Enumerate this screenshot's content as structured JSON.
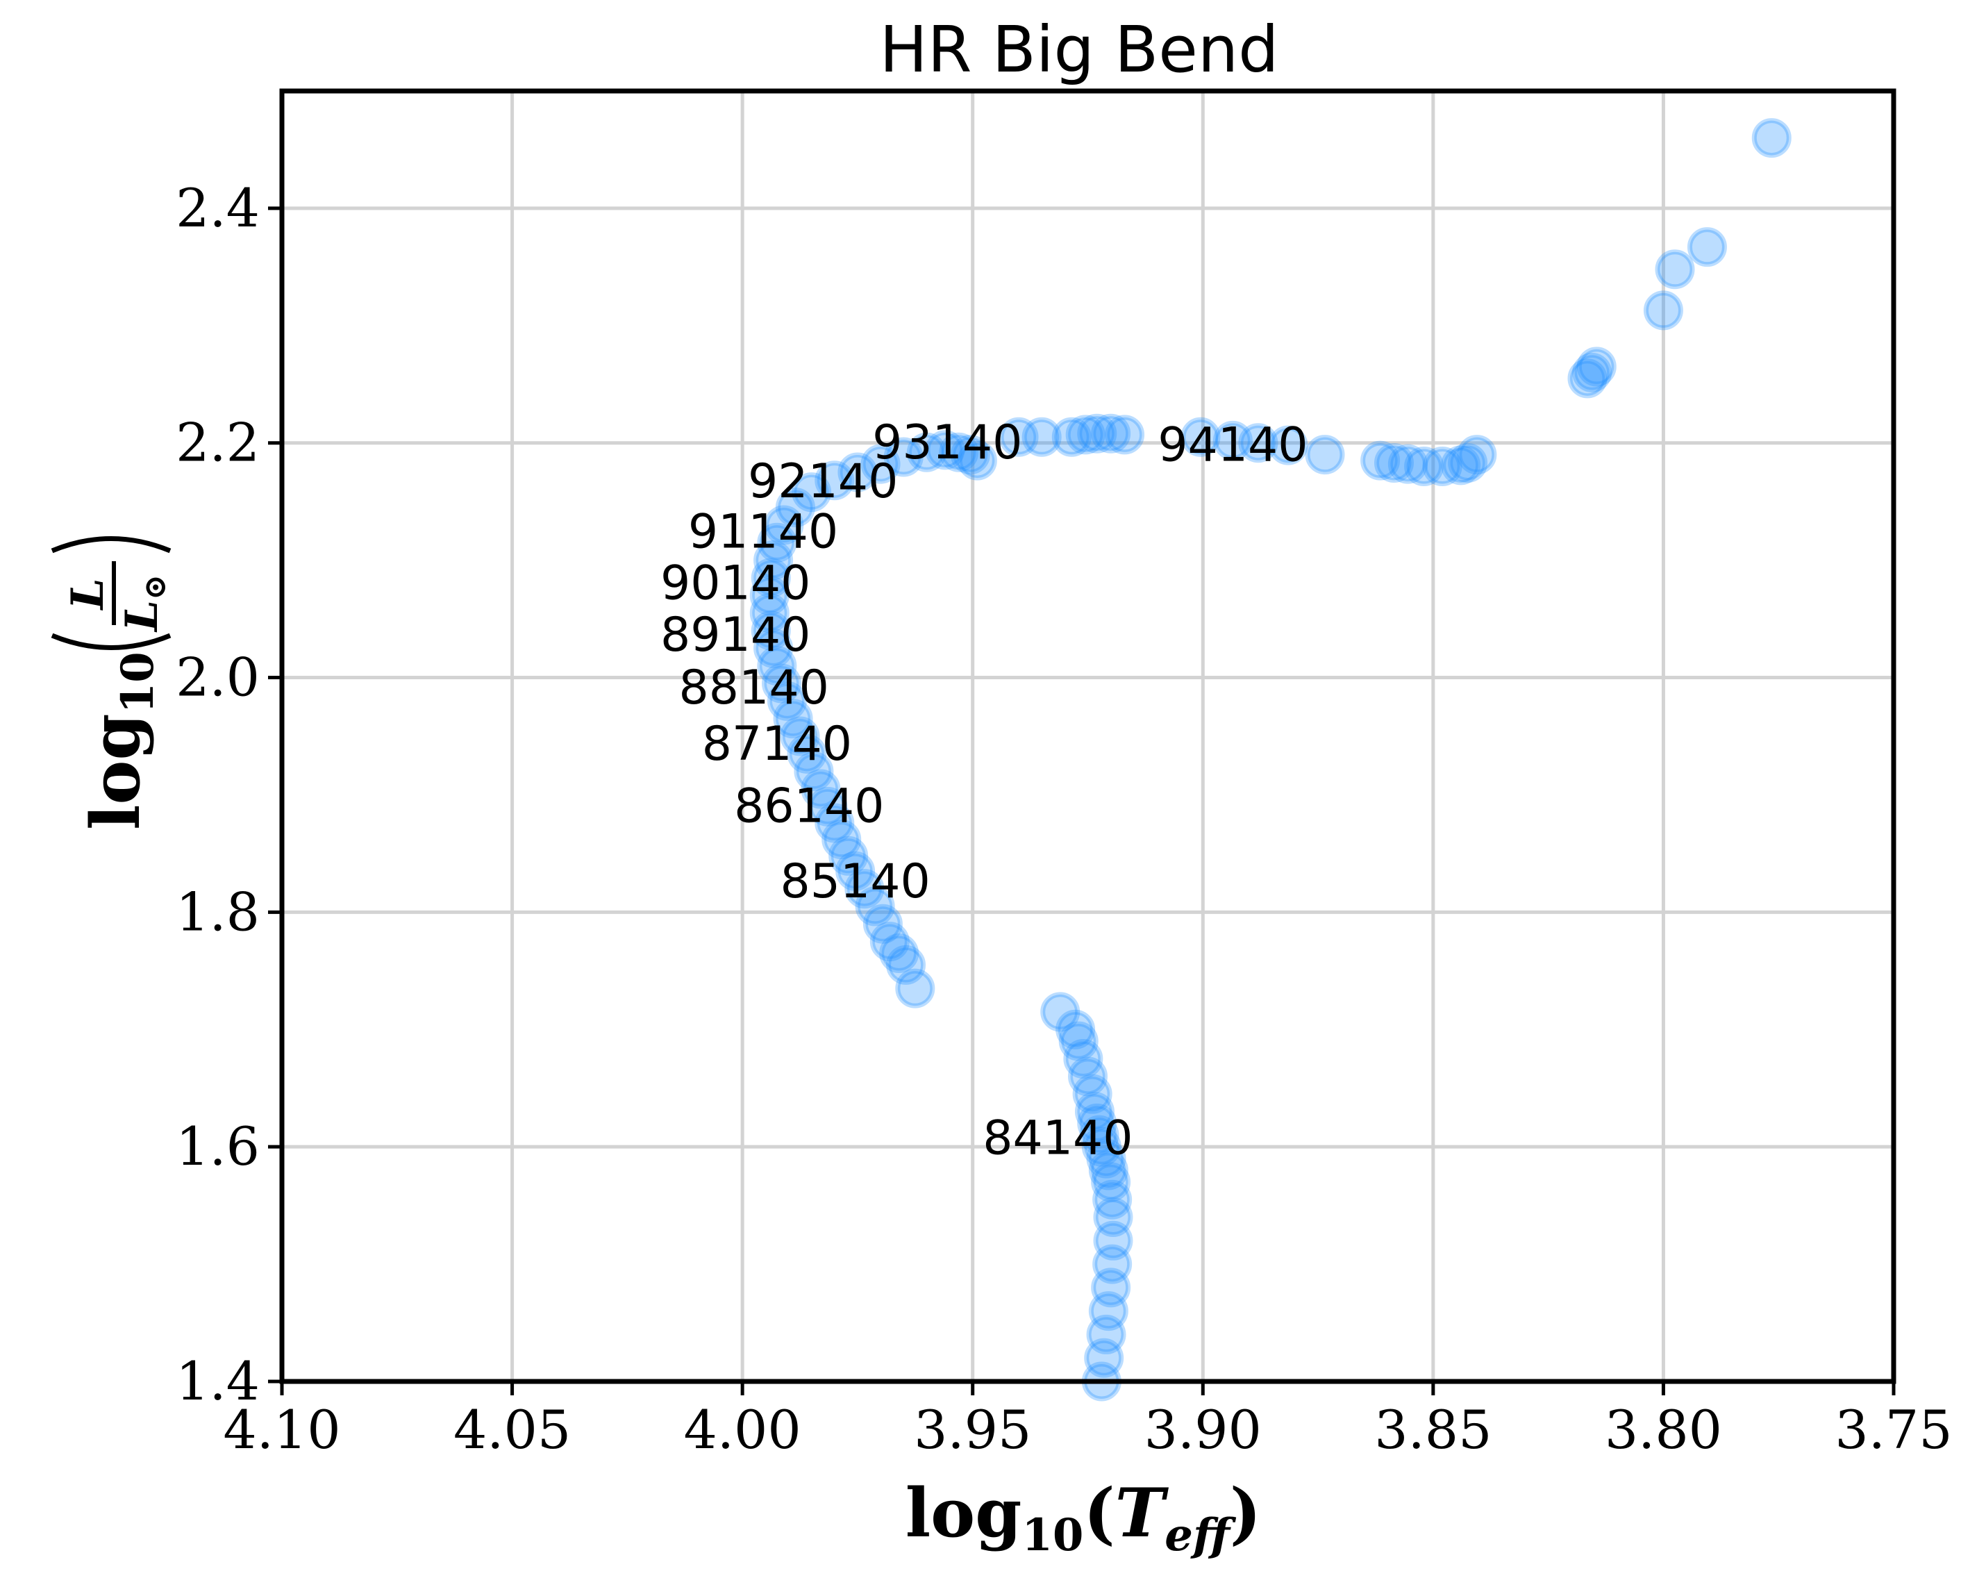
{
  "chart_data": {
    "type": "scatter",
    "title": "HR Big Bend",
    "xlabel": {
      "base": "log",
      "sub": "10",
      "open": "(",
      "var": "T",
      "var_sub": "eff",
      "close": ")"
    },
    "ylabel": {
      "base": "log",
      "sub": "10",
      "num": "L",
      "den": "L",
      "den_sub": "⊙"
    },
    "xlim": [
      4.1,
      3.75
    ],
    "ylim": [
      1.4,
      2.5
    ],
    "x_inverted": true,
    "grid": true,
    "xticks": [
      4.1,
      4.05,
      4.0,
      3.95,
      3.9,
      3.85,
      3.8,
      3.75
    ],
    "xtick_labels": [
      "4.10",
      "4.05",
      "4.00",
      "3.95",
      "3.90",
      "3.85",
      "3.80",
      "3.75"
    ],
    "yticks": [
      1.4,
      1.6,
      1.8,
      2.0,
      2.2,
      2.4
    ],
    "ytick_labels": [
      "1.4",
      "1.6",
      "1.8",
      "2.0",
      "2.2",
      "2.4"
    ],
    "marker_color": "#1e90ff",
    "series": [
      {
        "x": [
          3.922,
          3.9215,
          3.921,
          3.9205,
          3.92,
          3.9197,
          3.9195,
          3.9195,
          3.9197,
          3.92,
          3.9205,
          3.921,
          3.922,
          3.9225,
          3.923,
          3.9235,
          3.924,
          3.925,
          3.926,
          3.927,
          3.9277,
          3.931,
          3.9625,
          3.9645,
          3.966,
          3.968,
          3.9695,
          3.9712,
          3.9735,
          3.9755,
          3.977,
          3.9785,
          3.98,
          3.9815,
          3.983,
          3.9845,
          3.986,
          3.9875,
          3.989,
          3.9903,
          3.9915,
          3.9925,
          3.9933,
          3.9938,
          3.9941,
          3.9941,
          3.9938,
          3.9933,
          3.9925,
          3.991,
          3.9885,
          3.985,
          3.98,
          3.975,
          3.97,
          3.965,
          3.96,
          3.956,
          3.953,
          3.9505,
          3.949,
          3.94,
          3.935,
          3.9285,
          3.9255,
          3.923,
          3.92,
          3.917,
          3.9005,
          3.8935,
          3.888,
          3.8815,
          3.8735,
          3.8615,
          3.8585,
          3.8555,
          3.852,
          3.848,
          3.844,
          3.8425,
          3.8405,
          3.8165,
          3.8155,
          3.8145,
          3.8,
          3.7975,
          3.7905,
          3.7765
        ],
        "y": [
          1.4,
          1.42,
          1.44,
          1.46,
          1.48,
          1.5,
          1.52,
          1.54,
          1.555,
          1.57,
          1.58,
          1.59,
          1.6,
          1.61,
          1.62,
          1.63,
          1.645,
          1.66,
          1.675,
          1.69,
          1.7,
          1.715,
          1.735,
          1.755,
          1.765,
          1.775,
          1.79,
          1.805,
          1.82,
          1.835,
          1.848,
          1.862,
          1.876,
          1.89,
          1.905,
          1.92,
          1.935,
          1.95,
          1.965,
          1.98,
          1.995,
          2.01,
          2.025,
          2.04,
          2.055,
          2.07,
          2.085,
          2.1,
          2.115,
          2.13,
          2.145,
          2.158,
          2.168,
          2.175,
          2.182,
          2.188,
          2.192,
          2.194,
          2.192,
          2.19,
          2.185,
          2.205,
          2.205,
          2.205,
          2.207,
          2.208,
          2.208,
          2.207,
          2.205,
          2.202,
          2.2,
          2.198,
          2.19,
          2.185,
          2.183,
          2.182,
          2.18,
          2.18,
          2.181,
          2.183,
          2.19,
          2.255,
          2.26,
          2.265,
          2.313,
          2.348,
          2.367,
          2.46
        ]
      }
    ],
    "annotations": [
      {
        "text": "84140",
        "x": 3.9315,
        "y": 1.608
      },
      {
        "text": "85140",
        "x": 3.9755,
        "y": 1.827
      },
      {
        "text": "86140",
        "x": 3.9855,
        "y": 1.891
      },
      {
        "text": "87140",
        "x": 3.9925,
        "y": 1.944
      },
      {
        "text": "88140",
        "x": 3.9975,
        "y": 1.992
      },
      {
        "text": "89140",
        "x": 4.0015,
        "y": 2.037
      },
      {
        "text": "90140",
        "x": 4.0015,
        "y": 2.081
      },
      {
        "text": "91140",
        "x": 3.9955,
        "y": 2.125
      },
      {
        "text": "92140",
        "x": 3.9825,
        "y": 2.168
      },
      {
        "text": "93140",
        "x": 3.9555,
        "y": 2.201
      },
      {
        "text": "94140",
        "x": 3.8935,
        "y": 2.199
      }
    ]
  }
}
